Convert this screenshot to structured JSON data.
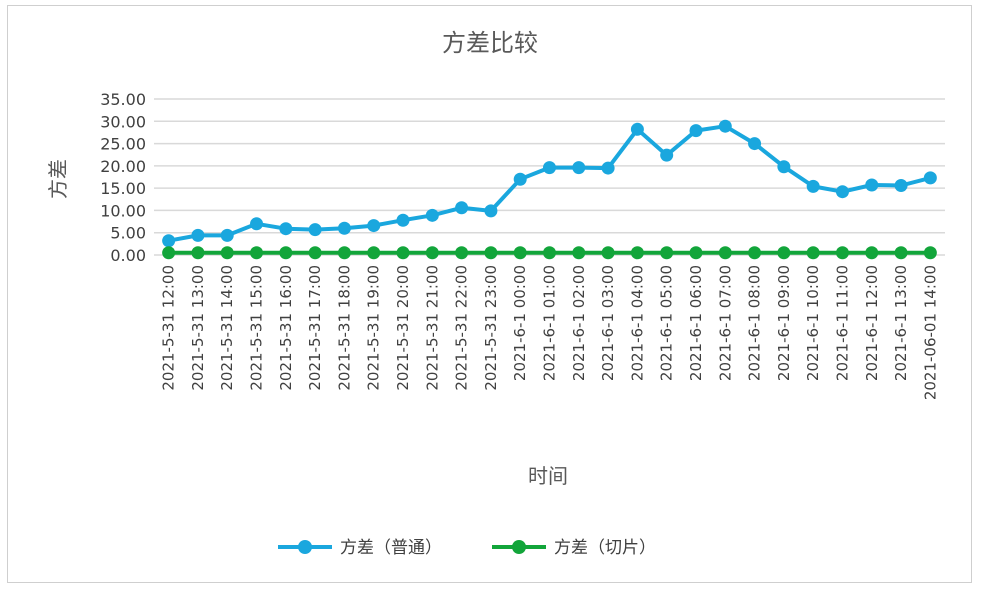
{
  "chart_data": {
    "type": "line",
    "title": "方差比较",
    "xlabel": "时间",
    "ylabel": "方差",
    "ylim": [
      0,
      35
    ],
    "yticks": [
      "0.00",
      "5.00",
      "10.00",
      "15.00",
      "20.00",
      "25.00",
      "30.00",
      "35.00"
    ],
    "grid": true,
    "legend_position": "bottom",
    "categories": [
      "2021-5-31 12:00",
      "2021-5-31 13:00",
      "2021-5-31 14:00",
      "2021-5-31 15:00",
      "2021-5-31 16:00",
      "2021-5-31 17:00",
      "2021-5-31 18:00",
      "2021-5-31 19:00",
      "2021-5-31 20:00",
      "2021-5-31 21:00",
      "2021-5-31 22:00",
      "2021-5-31 23:00",
      "2021-6-1 00:00",
      "2021-6-1 01:00",
      "2021-6-1 02:00",
      "2021-6-1 03:00",
      "2021-6-1 04:00",
      "2021-6-1 05:00",
      "2021-6-1 06:00",
      "2021-6-1 07:00",
      "2021-6-1 08:00",
      "2021-6-1 09:00",
      "2021-6-1 10:00",
      "2021-6-1 11:00",
      "2021-6-1 12:00",
      "2021-6-1 13:00",
      "2021-06-01 14:00"
    ],
    "series": [
      {
        "name": "方差（普通）",
        "color": "#1aa7de",
        "values": [
          3.2,
          4.4,
          4.4,
          7.0,
          5.9,
          5.7,
          6.0,
          6.6,
          7.8,
          8.9,
          10.6,
          9.9,
          17.0,
          19.6,
          19.6,
          19.5,
          28.2,
          22.4,
          27.9,
          28.9,
          25.0,
          19.8,
          15.4,
          14.2,
          15.7,
          15.6,
          17.3
        ]
      },
      {
        "name": "方差（切片）",
        "color": "#12a53a",
        "values": [
          0.5,
          0.5,
          0.5,
          0.5,
          0.5,
          0.5,
          0.5,
          0.5,
          0.5,
          0.5,
          0.5,
          0.5,
          0.5,
          0.5,
          0.5,
          0.5,
          0.5,
          0.5,
          0.5,
          0.5,
          0.5,
          0.5,
          0.5,
          0.5,
          0.5,
          0.5,
          0.5
        ]
      }
    ]
  }
}
